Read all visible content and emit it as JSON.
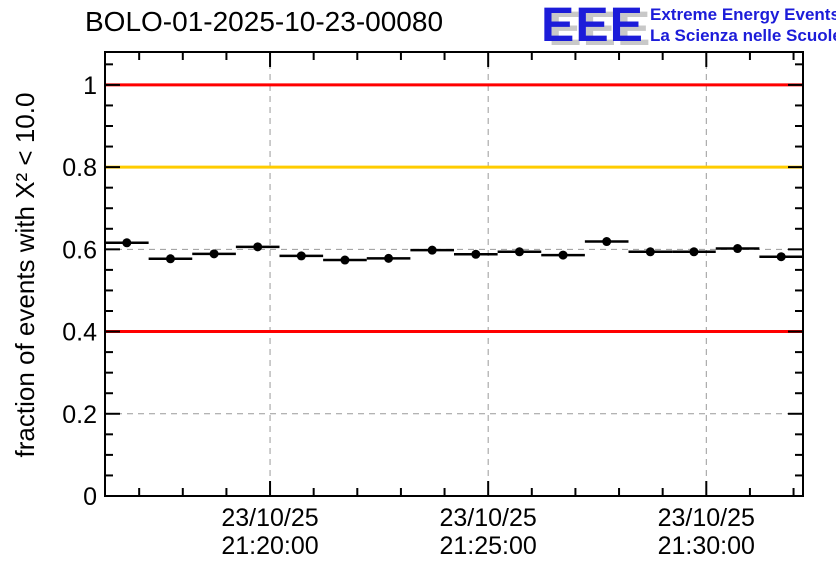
{
  "header": {
    "title": "BOLO-01-2025-10-23-00080",
    "logo": {
      "acronym": "EEE",
      "tagline_en": "Extreme Energy Events",
      "tagline_it": "La Scienza nelle Scuole",
      "color": "#1c1cd9",
      "shadow_color": "#c8c8c8"
    }
  },
  "chart_data": {
    "type": "scatter",
    "title": "BOLO-01-2025-10-23-00080",
    "ylabel": "fraction of events with X² < 10.0",
    "xlabel": "",
    "ylim": [
      0,
      1.08
    ],
    "y_ticks": [
      "0",
      "0.2",
      "0.4",
      "0.6",
      "0.8",
      "1"
    ],
    "y_major_step": 0.2,
    "y_minor_step": 0.05,
    "x_start": "21:16:13",
    "x_end": "21:32:13",
    "bin_width_seconds": 60,
    "x_ticks": [
      {
        "date": "23/10/25",
        "time": "21:20:00"
      },
      {
        "date": "23/10/25",
        "time": "21:25:00"
      },
      {
        "date": "23/10/25",
        "time": "21:30:00"
      }
    ],
    "grid": true,
    "grid_color": "#9a9a9a",
    "reference_lines": [
      {
        "value": 1.0,
        "color": "#ff0000"
      },
      {
        "value": 0.8,
        "color": "#ffcc00"
      },
      {
        "value": 0.4,
        "color": "#ff0000"
      }
    ],
    "marker": {
      "style": "filled-circle",
      "color": "#000000",
      "error_bars": "horizontal-bin-width"
    },
    "points": [
      {
        "time": "21:16:43",
        "value": 0.616
      },
      {
        "time": "21:17:43",
        "value": 0.577
      },
      {
        "time": "21:18:43",
        "value": 0.589
      },
      {
        "time": "21:19:43",
        "value": 0.606
      },
      {
        "time": "21:20:43",
        "value": 0.584
      },
      {
        "time": "21:21:43",
        "value": 0.574
      },
      {
        "time": "21:22:43",
        "value": 0.578
      },
      {
        "time": "21:23:43",
        "value": 0.598
      },
      {
        "time": "21:24:43",
        "value": 0.588
      },
      {
        "time": "21:25:43",
        "value": 0.594
      },
      {
        "time": "21:26:43",
        "value": 0.586
      },
      {
        "time": "21:27:43",
        "value": 0.619
      },
      {
        "time": "21:28:43",
        "value": 0.594
      },
      {
        "time": "21:29:43",
        "value": 0.594
      },
      {
        "time": "21:30:43",
        "value": 0.602
      },
      {
        "time": "21:31:43",
        "value": 0.582
      }
    ]
  }
}
